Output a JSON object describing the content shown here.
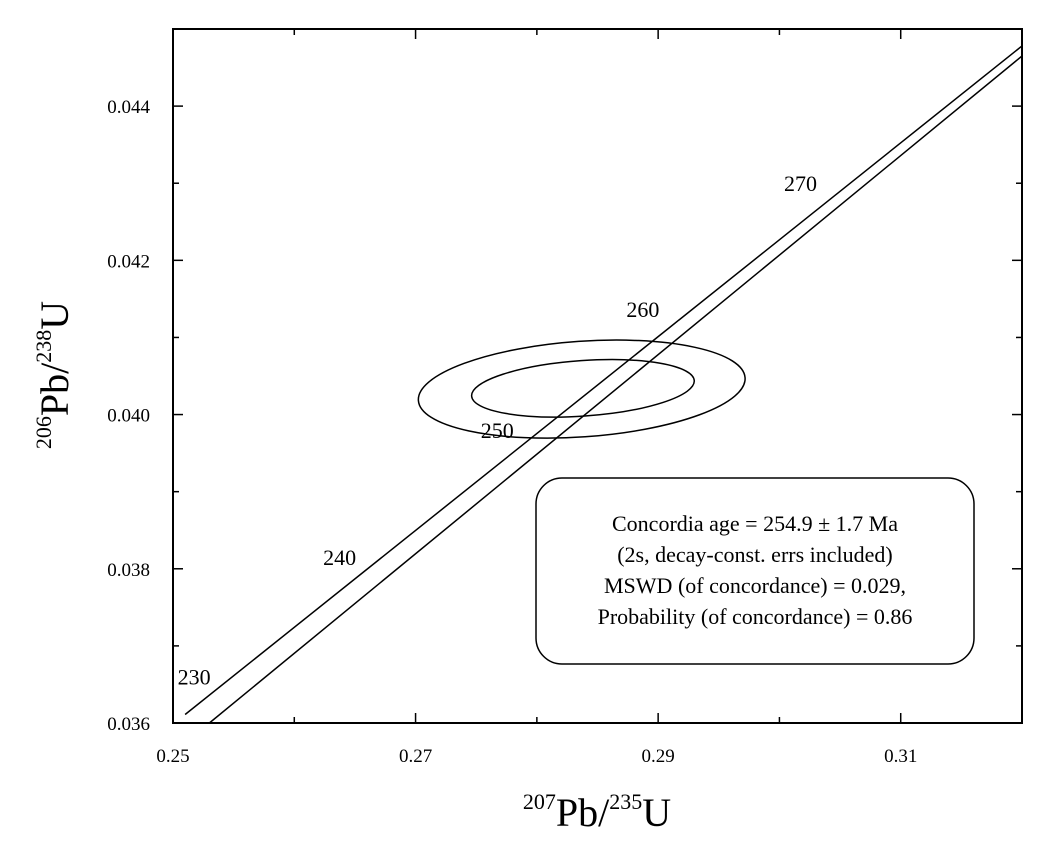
{
  "chart_data": {
    "type": "scatter",
    "subtype": "concordia",
    "xlabel": {
      "sup1": "207",
      "base1": "Pb/",
      "sup2": "235",
      "base2": "U"
    },
    "ylabel": {
      "sup1": "206",
      "base1": "Pb/",
      "sup2": "238",
      "base2": "U"
    },
    "xlim": [
      0.25,
      0.32
    ],
    "ylim": [
      0.036,
      0.045
    ],
    "x_major_ticks": [
      0.25,
      0.27,
      0.29,
      0.31
    ],
    "x_tick_labels": [
      "0.25",
      "0.27",
      "0.29",
      "0.31"
    ],
    "x_minor_ticks": [
      0.26,
      0.28,
      0.3
    ],
    "y_major_ticks": [
      0.036,
      0.038,
      0.04,
      0.042,
      0.044
    ],
    "y_tick_labels": [
      "0.036",
      "0.038",
      "0.040",
      "0.042",
      "0.044"
    ],
    "y_minor_ticks": [
      0.037,
      0.039,
      0.041,
      0.043
    ],
    "concordia_band": {
      "upper": [
        [
          0.251,
          0.03611
        ],
        [
          0.32,
          0.04478
        ]
      ],
      "lower": [
        [
          0.253,
          0.036
        ],
        [
          0.32,
          0.04465
        ]
      ]
    },
    "age_markers": [
      {
        "label": "230",
        "age": 230,
        "x": 0.2545,
        "y": 0.03638
      },
      {
        "label": "240",
        "age": 240,
        "x": 0.2665,
        "y": 0.03793
      },
      {
        "label": "250",
        "age": 250,
        "x": 0.2795,
        "y": 0.03958
      },
      {
        "label": "260",
        "age": 260,
        "x": 0.2915,
        "y": 0.04115
      },
      {
        "label": "270",
        "age": 270,
        "x": 0.3045,
        "y": 0.04278
      }
    ],
    "ellipses": [
      {
        "cx": 0.2837,
        "cy": 0.04033,
        "rx": 0.0135,
        "ry": 0.00062,
        "rotation_deg": 4
      },
      {
        "cx": 0.2838,
        "cy": 0.04034,
        "rx": 0.0092,
        "ry": 0.00036,
        "rotation_deg": 4
      }
    ]
  },
  "annotation": {
    "lines": [
      "Concordia age = 254.9 ± 1.7 Ma",
      "(2s, decay-const. errs included)",
      "MSWD (of concordance) = 0.029,",
      "Probability (of concordance) = 0.86"
    ]
  }
}
